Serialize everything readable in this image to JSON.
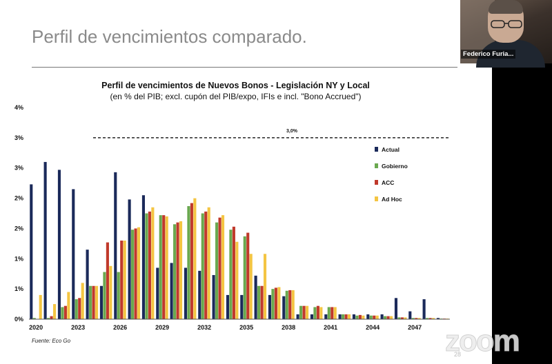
{
  "slide": {
    "title": "Perfil de vencimientos comparado.",
    "source": "Fuente: Eco Go",
    "page_number": "28"
  },
  "meeting": {
    "participant_name": "Federico Furia...",
    "app_logo": "zoom"
  },
  "colors": {
    "actual": "#1b2a5a",
    "gobierno": "#6aa84f",
    "acc": "#c0392b",
    "adhoc": "#f4c542"
  },
  "chart_data": {
    "type": "bar",
    "title": "Perfil de vencimientos de Nuevos Bonos - Legislación NY y Local",
    "subtitle": "(en % del PIB; excl. cupón del PIB/expo, IFIs e incl. \"Bono Accrued\")",
    "y_tick_labels": [
      "0%",
      "1%",
      "1%",
      "2%",
      "2%",
      "3%",
      "3%",
      "4%"
    ],
    "y_tick_values": [
      0,
      0.5,
      1.0,
      1.5,
      2.0,
      2.5,
      3.0,
      3.5
    ],
    "ylim": [
      0,
      3.5
    ],
    "x_tick_labels": [
      "2020",
      "2023",
      "2026",
      "2029",
      "2032",
      "2035",
      "2038",
      "2041",
      "2044",
      "2047"
    ],
    "categories": [
      2020,
      2021,
      2022,
      2023,
      2024,
      2025,
      2026,
      2027,
      2028,
      2029,
      2030,
      2031,
      2032,
      2033,
      2034,
      2035,
      2036,
      2037,
      2038,
      2039,
      2040,
      2041,
      2042,
      2043,
      2044,
      2045,
      2046,
      2047,
      2048,
      2049
    ],
    "reference_line": {
      "value": 3.0,
      "label": "3,0%"
    },
    "legend_position": "right",
    "series": [
      {
        "name": "Actual",
        "key": "actual",
        "values": [
          2.23,
          2.6,
          2.47,
          2.15,
          1.15,
          0.55,
          2.43,
          1.98,
          2.05,
          0.85,
          0.93,
          0.85,
          0.8,
          0.73,
          0.4,
          0.4,
          0.72,
          0.4,
          0.38,
          0.08,
          0.08,
          0.08,
          0.08,
          0.08,
          0.08,
          0.08,
          0.35,
          0.13,
          0.33,
          0.02
        ]
      },
      {
        "name": "Gobierno",
        "key": "gobierno",
        "values": [
          0.02,
          0.02,
          0.2,
          0.33,
          0.55,
          0.78,
          0.78,
          1.48,
          1.75,
          1.72,
          1.57,
          1.87,
          1.75,
          1.6,
          1.48,
          1.37,
          0.55,
          0.5,
          0.47,
          0.22,
          0.2,
          0.2,
          0.08,
          0.06,
          0.06,
          0.05,
          0.03,
          0.02,
          0.02,
          0.01
        ]
      },
      {
        "name": "ACC",
        "key": "acc",
        "values": [
          0.0,
          0.05,
          0.22,
          0.35,
          0.55,
          1.27,
          1.3,
          1.5,
          1.78,
          1.72,
          1.6,
          1.92,
          1.78,
          1.68,
          1.53,
          1.43,
          0.55,
          0.52,
          0.48,
          0.22,
          0.22,
          0.2,
          0.08,
          0.07,
          0.06,
          0.05,
          0.03,
          0.02,
          0.02,
          0.01
        ]
      },
      {
        "name": "Ad Hoc",
        "key": "adhoc",
        "values": [
          0.4,
          0.25,
          0.45,
          0.6,
          0.55,
          0.88,
          1.3,
          1.52,
          1.85,
          1.7,
          1.62,
          2.0,
          1.85,
          1.72,
          1.28,
          1.08,
          1.08,
          0.53,
          0.48,
          0.22,
          0.2,
          0.2,
          0.08,
          0.06,
          0.06,
          0.05,
          0.03,
          0.02,
          0.02,
          0.01
        ]
      }
    ]
  }
}
